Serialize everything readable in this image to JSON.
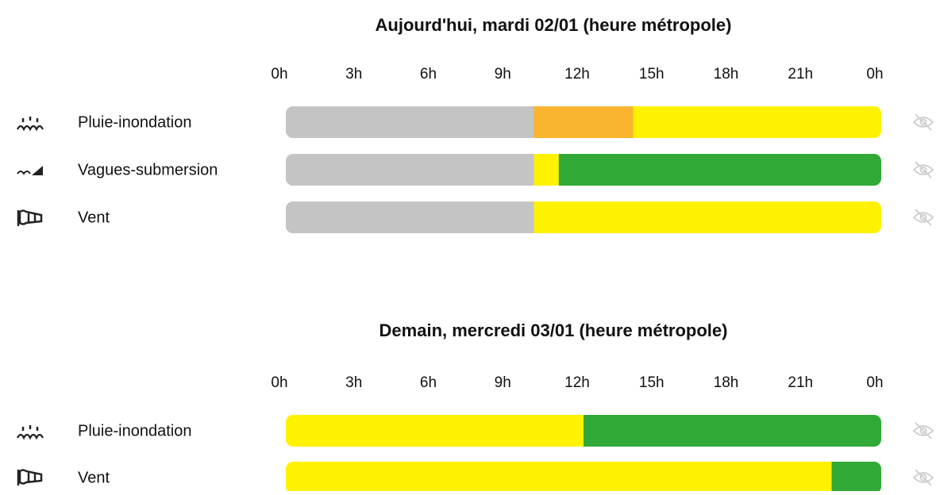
{
  "days": [
    {
      "title": "Aujourd'hui, mardi 02/01 (heure métropole)",
      "hours": [
        {
          "value": 0,
          "label": "0h"
        },
        {
          "value": 3,
          "label": "3h"
        },
        {
          "value": 6,
          "label": "6h"
        },
        {
          "value": 9,
          "label": "9h"
        },
        {
          "value": 12,
          "label": "12h"
        },
        {
          "value": 15,
          "label": "15h"
        },
        {
          "value": 18,
          "label": "18h"
        },
        {
          "value": 21,
          "label": "21h"
        },
        {
          "value": 24,
          "label": "0h"
        }
      ],
      "rows": [
        {
          "label": "Pluie-inondation",
          "segments": [
            {
              "start": 0,
              "end": 10,
              "color": "#c4c4c4"
            },
            {
              "start": 10,
              "end": 14,
              "color": "#fbb42d"
            },
            {
              "start": 14,
              "end": 24,
              "color": "#fff200"
            }
          ]
        },
        {
          "label": "Vagues-submersion",
          "segments": [
            {
              "start": 0,
              "end": 10,
              "color": "#c4c4c4"
            },
            {
              "start": 10,
              "end": 11,
              "color": "#fff200"
            },
            {
              "start": 11,
              "end": 24,
              "color": "#31a936"
            }
          ]
        },
        {
          "label": "Vent",
          "segments": [
            {
              "start": 0,
              "end": 10,
              "color": "#c4c4c4"
            },
            {
              "start": 10,
              "end": 24,
              "color": "#fff200"
            }
          ]
        }
      ]
    },
    {
      "title": "Demain, mercredi 03/01 (heure métropole)",
      "hours": [
        {
          "value": 0,
          "label": "0h"
        },
        {
          "value": 3,
          "label": "3h"
        },
        {
          "value": 6,
          "label": "6h"
        },
        {
          "value": 9,
          "label": "9h"
        },
        {
          "value": 12,
          "label": "12h"
        },
        {
          "value": 15,
          "label": "15h"
        },
        {
          "value": 18,
          "label": "18h"
        },
        {
          "value": 21,
          "label": "21h"
        },
        {
          "value": 24,
          "label": "0h"
        }
      ],
      "rows": [
        {
          "label": "Pluie-inondation",
          "segments": [
            {
              "start": 0,
              "end": 12,
              "color": "#fff200"
            },
            {
              "start": 12,
              "end": 24,
              "color": "#31a936"
            }
          ]
        },
        {
          "label": "Vent",
          "segments": [
            {
              "start": 0,
              "end": 22,
              "color": "#fff200"
            },
            {
              "start": 22,
              "end": 24,
              "color": "#31a936"
            }
          ]
        }
      ]
    }
  ]
}
